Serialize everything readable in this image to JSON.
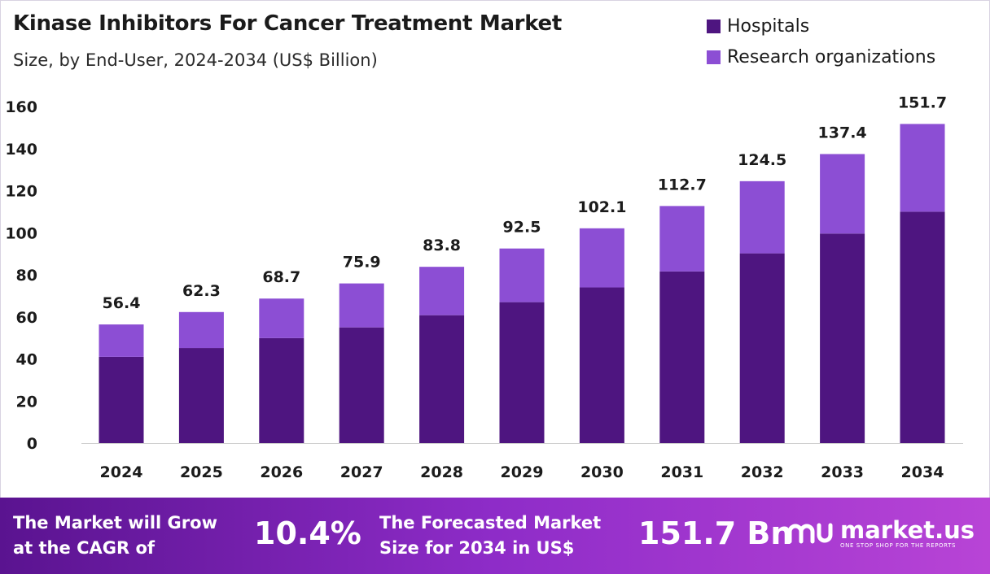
{
  "header": {
    "title": "Kinase Inhibitors For Cancer Treatment Market",
    "subtitle": "Size, by End-User, 2024-2034 (US$ Billion)"
  },
  "legend": [
    {
      "label": "Hospitals",
      "color": "#4e1580"
    },
    {
      "label": "Research organizations",
      "color": "#8c4ed4"
    }
  ],
  "chart_data": {
    "type": "bar",
    "stacked": true,
    "categories": [
      "2024",
      "2025",
      "2026",
      "2027",
      "2028",
      "2029",
      "2030",
      "2031",
      "2032",
      "2033",
      "2034"
    ],
    "series": [
      {
        "name": "Hospitals",
        "color": "#4e1580",
        "values": [
          41.0,
          45.2,
          49.9,
          55.0,
          60.8,
          67.0,
          74.0,
          81.6,
          90.2,
          99.6,
          110.0
        ]
      },
      {
        "name": "Research organizations",
        "color": "#8c4ed4",
        "values": [
          15.4,
          17.1,
          18.8,
          20.9,
          23.0,
          25.5,
          28.1,
          31.1,
          34.3,
          37.8,
          41.7
        ]
      }
    ],
    "totals": [
      "56.4",
      "62.3",
      "68.7",
      "75.9",
      "83.8",
      "92.5",
      "102.1",
      "112.7",
      "124.5",
      "137.4",
      "151.7"
    ],
    "ylim": [
      0,
      160
    ],
    "yticks": [
      0,
      20,
      40,
      60,
      80,
      100,
      120,
      140,
      160
    ],
    "grid": false,
    "legend_position": "top-right"
  },
  "banner": {
    "cagr_text_line1": "The Market will Grow",
    "cagr_text_line2": "at the CAGR of",
    "cagr_value": "10.4%",
    "forecast_text_line1": "The Forecasted Market",
    "forecast_text_line2": "Size for 2034 in US$",
    "forecast_value": "151.7 Bn",
    "logo_name": "market.us",
    "logo_tagline": "ONE STOP SHOP FOR THE REPORTS"
  }
}
